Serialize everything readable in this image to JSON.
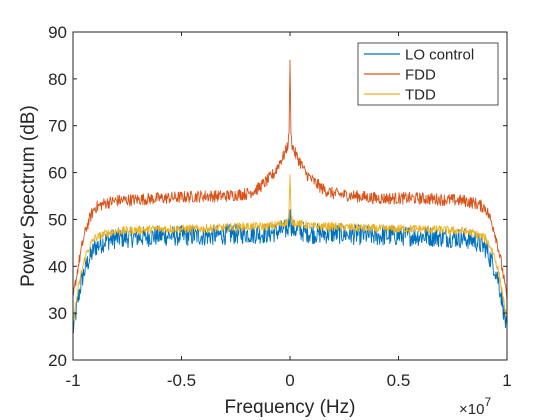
{
  "chart_data": {
    "type": "line",
    "title": "",
    "xlabel": "Frequency (Hz)",
    "ylabel": "Power Spectrum (dB)",
    "x_exponent_label": "×10",
    "x_exponent_power": "7",
    "xlim": [
      -1,
      1
    ],
    "ylim": [
      20,
      90
    ],
    "xticks": [
      -1,
      -0.5,
      0,
      0.5,
      1
    ],
    "xtick_labels": [
      "-1",
      "-0.5",
      "0",
      "0.5",
      "1"
    ],
    "yticks": [
      20,
      30,
      40,
      50,
      60,
      70,
      80,
      90
    ],
    "ytick_labels": [
      "20",
      "30",
      "40",
      "50",
      "60",
      "70",
      "80",
      "90"
    ],
    "grid": false,
    "legend_position": "top-right",
    "series": [
      {
        "name": "LO control",
        "color": "#0072BD",
        "noise_amplitude": 2.2,
        "x": [
          -1,
          -0.98,
          -0.96,
          -0.94,
          -0.92,
          -0.9,
          -0.85,
          -0.8,
          -0.6,
          -0.4,
          -0.2,
          -0.1,
          -0.05,
          -0.01,
          -0.005,
          0,
          0.005,
          0.01,
          0.05,
          0.1,
          0.2,
          0.4,
          0.6,
          0.8,
          0.85,
          0.9,
          0.92,
          0.94,
          0.96,
          0.98,
          1
        ],
        "y": [
          26,
          32,
          37,
          40,
          42,
          44,
          45.5,
          46,
          46.5,
          46.5,
          47,
          47,
          47.5,
          48,
          49,
          52,
          49,
          48,
          47.5,
          47,
          47,
          46.5,
          46.5,
          46,
          45.5,
          44,
          42,
          40,
          37,
          32,
          26
        ]
      },
      {
        "name": "FDD",
        "color": "#D95319",
        "noise_amplitude": 1.3,
        "x": [
          -1,
          -0.98,
          -0.96,
          -0.94,
          -0.92,
          -0.9,
          -0.85,
          -0.8,
          -0.6,
          -0.4,
          -0.3,
          -0.2,
          -0.15,
          -0.1,
          -0.07,
          -0.05,
          -0.03,
          -0.02,
          -0.01,
          -0.005,
          0,
          0.005,
          0.01,
          0.02,
          0.03,
          0.05,
          0.07,
          0.1,
          0.15,
          0.2,
          0.3,
          0.4,
          0.6,
          0.8,
          0.85,
          0.9,
          0.92,
          0.94,
          0.96,
          0.98,
          1
        ],
        "y": [
          33,
          39,
          44,
          48,
          50.5,
          52.5,
          53.5,
          54,
          54.5,
          55,
          55,
          55.5,
          56.5,
          58.5,
          60,
          62,
          63.5,
          64.5,
          66,
          67.5,
          83,
          67.5,
          66,
          64.5,
          63.5,
          62,
          60,
          58.5,
          56.5,
          55.5,
          55,
          54.5,
          54.5,
          54,
          53.5,
          52.5,
          50.5,
          48,
          44,
          39,
          33
        ]
      },
      {
        "name": "TDD",
        "color": "#EDB120",
        "noise_amplitude": 0.9,
        "x": [
          -1,
          -0.98,
          -0.96,
          -0.94,
          -0.92,
          -0.9,
          -0.85,
          -0.8,
          -0.6,
          -0.4,
          -0.2,
          -0.1,
          -0.05,
          -0.01,
          -0.005,
          0,
          0.005,
          0.01,
          0.05,
          0.1,
          0.2,
          0.4,
          0.6,
          0.8,
          0.85,
          0.9,
          0.92,
          0.94,
          0.96,
          0.98,
          1
        ],
        "y": [
          28,
          34,
          39,
          42.5,
          44.5,
          46,
          47,
          47.5,
          48,
          48,
          48.5,
          48.5,
          49,
          49.5,
          51,
          59,
          51,
          49.5,
          49,
          48.5,
          48.5,
          48,
          48,
          47.5,
          47,
          46,
          44.5,
          42.5,
          39,
          34,
          28
        ]
      }
    ]
  }
}
